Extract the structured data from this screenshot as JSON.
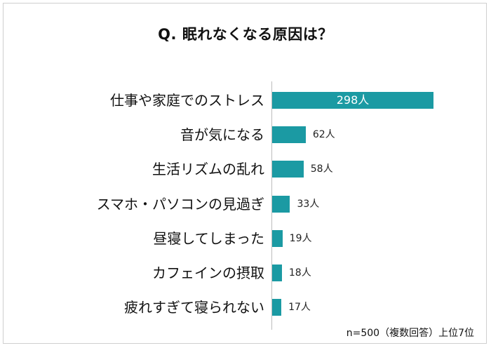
{
  "title": "Q. 眠れなくなる原因は？",
  "note": "n=500（複数回答）上位7位",
  "chart_data": {
    "type": "bar",
    "orientation": "horizontal",
    "title": "Q. 眠れなくなる原因は？",
    "categories": [
      "仕事や家庭でのストレス",
      "音が気になる",
      "生活リズムの乱れ",
      "スマホ・パソコンの見過ぎ",
      "昼寝してしまった",
      "カフェインの摂取",
      "疲れすぎて寝られない"
    ],
    "values": [
      298,
      62,
      58,
      33,
      19,
      18,
      17
    ],
    "value_labels": [
      "298人",
      "62人",
      "58人",
      "33人",
      "19人",
      "18人",
      "17人"
    ],
    "unit": "人",
    "bar_color": "#1b9aa3",
    "xlim": [
      0,
      298
    ],
    "grid": false,
    "legend": "none"
  }
}
